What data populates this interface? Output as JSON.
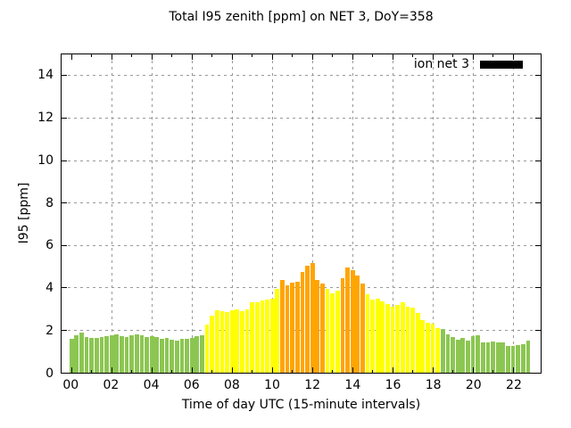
{
  "title": "Total I95 zenith [ppm] on NET 3, DoY=358",
  "legend": {
    "label": "ion net 3",
    "swatch_color": "#000000"
  },
  "colors": {
    "green": "#8CC652",
    "yellow": "#FFFF00",
    "orange": "#FFA500",
    "grid": "#999999",
    "axis": "#000000",
    "background": "#FFFFFF"
  },
  "chart_data": {
    "type": "bar",
    "title": "Total I95 zenith [ppm] on NET 3, DoY=358",
    "xlabel": "Time of day UTC (15-minute intervals)",
    "ylabel": "I95 [ppm]",
    "series_name": "ion net 3",
    "interval_minutes": 15,
    "xlim_hours": [
      -0.5,
      23.375
    ],
    "ylim": [
      0,
      15
    ],
    "grid": true,
    "legend_position": "top-right",
    "x_ticks": [
      {
        "hour": 0,
        "label": "00"
      },
      {
        "hour": 2,
        "label": "02"
      },
      {
        "hour": 4,
        "label": "04"
      },
      {
        "hour": 6,
        "label": "06"
      },
      {
        "hour": 8,
        "label": "08"
      },
      {
        "hour": 10,
        "label": "10"
      },
      {
        "hour": 12,
        "label": "12"
      },
      {
        "hour": 14,
        "label": "14"
      },
      {
        "hour": 16,
        "label": "16"
      },
      {
        "hour": 18,
        "label": "18"
      },
      {
        "hour": 20,
        "label": "20"
      },
      {
        "hour": 22,
        "label": "22"
      }
    ],
    "y_ticks": [
      0,
      2,
      4,
      6,
      8,
      10,
      12,
      14
    ],
    "points": [
      {
        "t": "00:00",
        "v": 1.6,
        "c": "green"
      },
      {
        "t": "00:15",
        "v": 1.75,
        "c": "green"
      },
      {
        "t": "00:30",
        "v": 1.9,
        "c": "green"
      },
      {
        "t": "00:45",
        "v": 1.7,
        "c": "green"
      },
      {
        "t": "01:00",
        "v": 1.65,
        "c": "green"
      },
      {
        "t": "01:15",
        "v": 1.62,
        "c": "green"
      },
      {
        "t": "01:30",
        "v": 1.7,
        "c": "green"
      },
      {
        "t": "01:45",
        "v": 1.72,
        "c": "green"
      },
      {
        "t": "02:00",
        "v": 1.78,
        "c": "green"
      },
      {
        "t": "02:15",
        "v": 1.82,
        "c": "green"
      },
      {
        "t": "02:30",
        "v": 1.72,
        "c": "green"
      },
      {
        "t": "02:45",
        "v": 1.68,
        "c": "green"
      },
      {
        "t": "03:00",
        "v": 1.75,
        "c": "green"
      },
      {
        "t": "03:15",
        "v": 1.82,
        "c": "green"
      },
      {
        "t": "03:30",
        "v": 1.78,
        "c": "green"
      },
      {
        "t": "03:45",
        "v": 1.7,
        "c": "green"
      },
      {
        "t": "04:00",
        "v": 1.72,
        "c": "green"
      },
      {
        "t": "04:15",
        "v": 1.68,
        "c": "green"
      },
      {
        "t": "04:30",
        "v": 1.58,
        "c": "green"
      },
      {
        "t": "04:45",
        "v": 1.62,
        "c": "green"
      },
      {
        "t": "05:00",
        "v": 1.55,
        "c": "green"
      },
      {
        "t": "05:15",
        "v": 1.52,
        "c": "green"
      },
      {
        "t": "05:30",
        "v": 1.58,
        "c": "green"
      },
      {
        "t": "05:45",
        "v": 1.6,
        "c": "green"
      },
      {
        "t": "06:00",
        "v": 1.64,
        "c": "green"
      },
      {
        "t": "06:15",
        "v": 1.72,
        "c": "green"
      },
      {
        "t": "06:30",
        "v": 1.78,
        "c": "green"
      },
      {
        "t": "06:45",
        "v": 2.25,
        "c": "yellow"
      },
      {
        "t": "07:00",
        "v": 2.7,
        "c": "yellow"
      },
      {
        "t": "07:15",
        "v": 2.95,
        "c": "yellow"
      },
      {
        "t": "07:30",
        "v": 2.9,
        "c": "yellow"
      },
      {
        "t": "07:45",
        "v": 2.85,
        "c": "yellow"
      },
      {
        "t": "08:00",
        "v": 2.95,
        "c": "yellow"
      },
      {
        "t": "08:15",
        "v": 3.0,
        "c": "yellow"
      },
      {
        "t": "08:30",
        "v": 2.9,
        "c": "yellow"
      },
      {
        "t": "08:45",
        "v": 3.0,
        "c": "yellow"
      },
      {
        "t": "09:00",
        "v": 3.3,
        "c": "yellow"
      },
      {
        "t": "09:15",
        "v": 3.3,
        "c": "yellow"
      },
      {
        "t": "09:30",
        "v": 3.4,
        "c": "yellow"
      },
      {
        "t": "09:45",
        "v": 3.45,
        "c": "yellow"
      },
      {
        "t": "10:00",
        "v": 3.5,
        "c": "yellow"
      },
      {
        "t": "10:15",
        "v": 3.95,
        "c": "yellow"
      },
      {
        "t": "10:30",
        "v": 4.35,
        "c": "orange"
      },
      {
        "t": "10:45",
        "v": 4.1,
        "c": "orange"
      },
      {
        "t": "11:00",
        "v": 4.25,
        "c": "orange"
      },
      {
        "t": "11:15",
        "v": 4.3,
        "c": "orange"
      },
      {
        "t": "11:30",
        "v": 4.75,
        "c": "orange"
      },
      {
        "t": "11:45",
        "v": 5.05,
        "c": "orange"
      },
      {
        "t": "12:00",
        "v": 5.15,
        "c": "orange"
      },
      {
        "t": "12:15",
        "v": 4.35,
        "c": "orange"
      },
      {
        "t": "12:30",
        "v": 4.2,
        "c": "orange"
      },
      {
        "t": "12:45",
        "v": 3.95,
        "c": "yellow"
      },
      {
        "t": "13:00",
        "v": 3.75,
        "c": "yellow"
      },
      {
        "t": "13:15",
        "v": 3.85,
        "c": "yellow"
      },
      {
        "t": "13:30",
        "v": 4.45,
        "c": "orange"
      },
      {
        "t": "13:45",
        "v": 4.95,
        "c": "orange"
      },
      {
        "t": "14:00",
        "v": 4.85,
        "c": "orange"
      },
      {
        "t": "14:15",
        "v": 4.6,
        "c": "orange"
      },
      {
        "t": "14:30",
        "v": 4.2,
        "c": "orange"
      },
      {
        "t": "14:45",
        "v": 3.7,
        "c": "yellow"
      },
      {
        "t": "15:00",
        "v": 3.45,
        "c": "yellow"
      },
      {
        "t": "15:15",
        "v": 3.5,
        "c": "yellow"
      },
      {
        "t": "15:30",
        "v": 3.35,
        "c": "yellow"
      },
      {
        "t": "15:45",
        "v": 3.25,
        "c": "yellow"
      },
      {
        "t": "16:00",
        "v": 3.1,
        "c": "yellow"
      },
      {
        "t": "16:15",
        "v": 3.2,
        "c": "yellow"
      },
      {
        "t": "16:30",
        "v": 3.3,
        "c": "yellow"
      },
      {
        "t": "16:45",
        "v": 3.1,
        "c": "yellow"
      },
      {
        "t": "17:00",
        "v": 3.05,
        "c": "yellow"
      },
      {
        "t": "17:15",
        "v": 2.8,
        "c": "yellow"
      },
      {
        "t": "17:30",
        "v": 2.5,
        "c": "yellow"
      },
      {
        "t": "17:45",
        "v": 2.35,
        "c": "yellow"
      },
      {
        "t": "18:00",
        "v": 2.3,
        "c": "yellow"
      },
      {
        "t": "18:15",
        "v": 2.1,
        "c": "yellow"
      },
      {
        "t": "18:30",
        "v": 2.05,
        "c": "green"
      },
      {
        "t": "18:45",
        "v": 1.8,
        "c": "green"
      },
      {
        "t": "19:00",
        "v": 1.7,
        "c": "green"
      },
      {
        "t": "19:15",
        "v": 1.55,
        "c": "green"
      },
      {
        "t": "19:30",
        "v": 1.65,
        "c": "green"
      },
      {
        "t": "19:45",
        "v": 1.5,
        "c": "green"
      },
      {
        "t": "20:00",
        "v": 1.72,
        "c": "green"
      },
      {
        "t": "20:15",
        "v": 1.75,
        "c": "green"
      },
      {
        "t": "20:30",
        "v": 1.45,
        "c": "green"
      },
      {
        "t": "20:45",
        "v": 1.45,
        "c": "green"
      },
      {
        "t": "21:00",
        "v": 1.48,
        "c": "green"
      },
      {
        "t": "21:15",
        "v": 1.45,
        "c": "green"
      },
      {
        "t": "21:30",
        "v": 1.45,
        "c": "green"
      },
      {
        "t": "21:45",
        "v": 1.25,
        "c": "green"
      },
      {
        "t": "22:00",
        "v": 1.25,
        "c": "green"
      },
      {
        "t": "22:15",
        "v": 1.3,
        "c": "green"
      },
      {
        "t": "22:30",
        "v": 1.35,
        "c": "green"
      },
      {
        "t": "22:45",
        "v": 1.5,
        "c": "green"
      }
    ]
  }
}
